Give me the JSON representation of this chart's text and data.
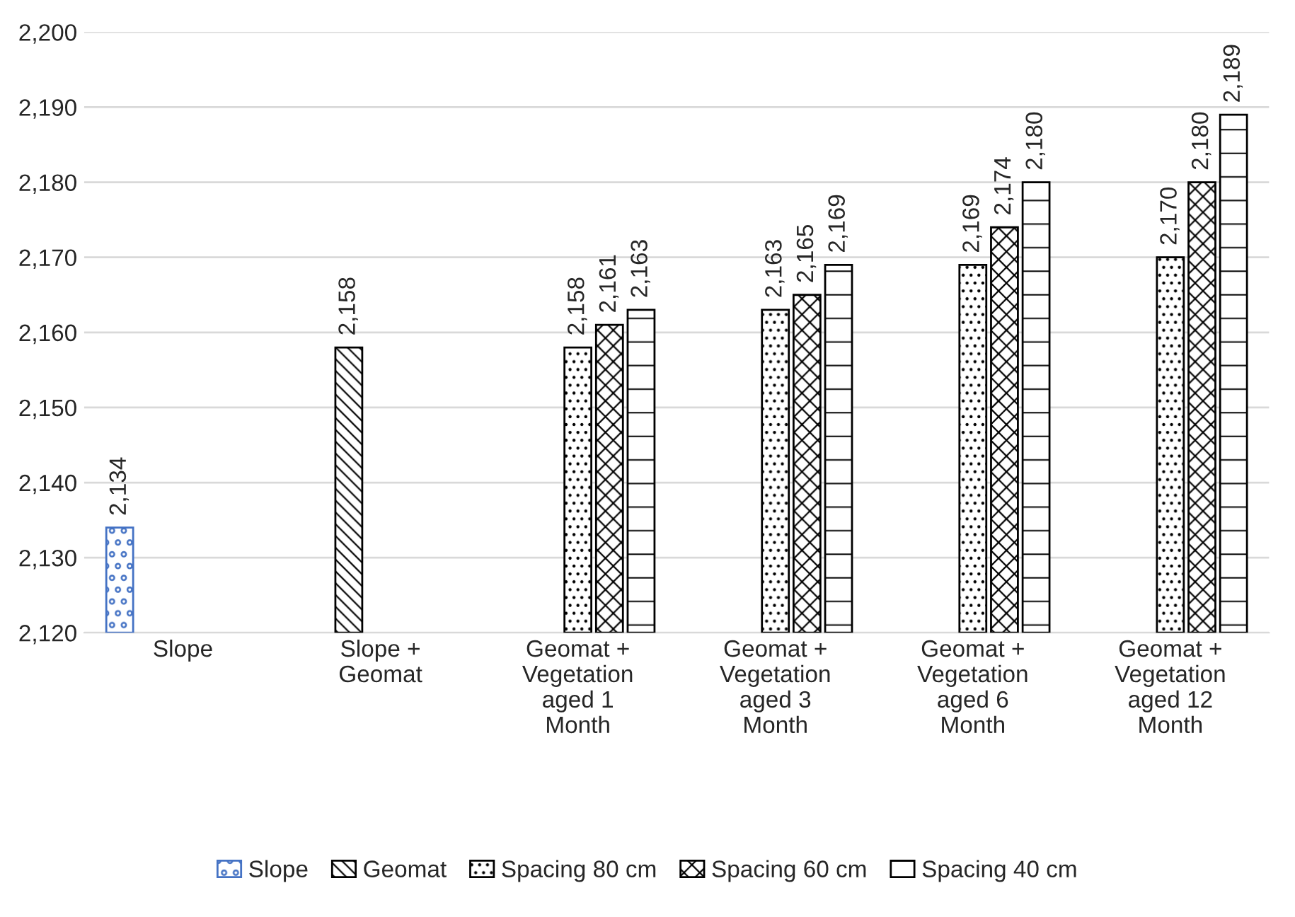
{
  "chart_data": {
    "type": "bar",
    "categories": [
      "Slope",
      "Slope +\nGeomat",
      "Geomat +\nVegetation\naged 1\nMonth",
      "Geomat +\nVegetation\naged 3\nMonth",
      "Geomat +\nVegetation\naged 6\nMonth",
      "Geomat +\nVegetation\naged 12\nMonth"
    ],
    "series": [
      {
        "name": "Slope",
        "color": "#4472c4",
        "values": [
          2134,
          null,
          null,
          null,
          null,
          null
        ],
        "value_labels": [
          "2,134",
          null,
          null,
          null,
          null,
          null
        ]
      },
      {
        "name": "Geomat",
        "color": "#000000",
        "values": [
          null,
          2158,
          null,
          null,
          null,
          null
        ],
        "value_labels": [
          null,
          "2,158",
          null,
          null,
          null,
          null
        ]
      },
      {
        "name": "Spacing 80 cm",
        "color": "#000000",
        "values": [
          null,
          null,
          2158,
          2163,
          2169,
          2170
        ],
        "value_labels": [
          null,
          null,
          "2,158",
          "2,163",
          "2,169",
          "2,170"
        ]
      },
      {
        "name": "Spacing 60 cm",
        "color": "#000000",
        "values": [
          null,
          null,
          2161,
          2165,
          2174,
          2180
        ],
        "value_labels": [
          null,
          null,
          "2,161",
          "2,165",
          "2,174",
          "2,180"
        ]
      },
      {
        "name": "Spacing 40 cm",
        "color": "#000000",
        "values": [
          null,
          null,
          2163,
          2169,
          2180,
          2189
        ],
        "value_labels": [
          null,
          null,
          "2,163",
          "2,169",
          "2,180",
          "2,189"
        ]
      }
    ],
    "ylim": [
      2120,
      2200
    ],
    "yticks": [
      {
        "value": 2120,
        "label": "2,120"
      },
      {
        "value": 2130,
        "label": "2,130"
      },
      {
        "value": 2140,
        "label": "2,140"
      },
      {
        "value": 2150,
        "label": "2,150"
      },
      {
        "value": 2160,
        "label": "2,160"
      },
      {
        "value": 2170,
        "label": "2,170"
      },
      {
        "value": 2180,
        "label": "2,180"
      },
      {
        "value": 2190,
        "label": "2,190"
      },
      {
        "value": 2200,
        "label": "2,200"
      }
    ],
    "grid": "y",
    "legend": "bottom"
  }
}
